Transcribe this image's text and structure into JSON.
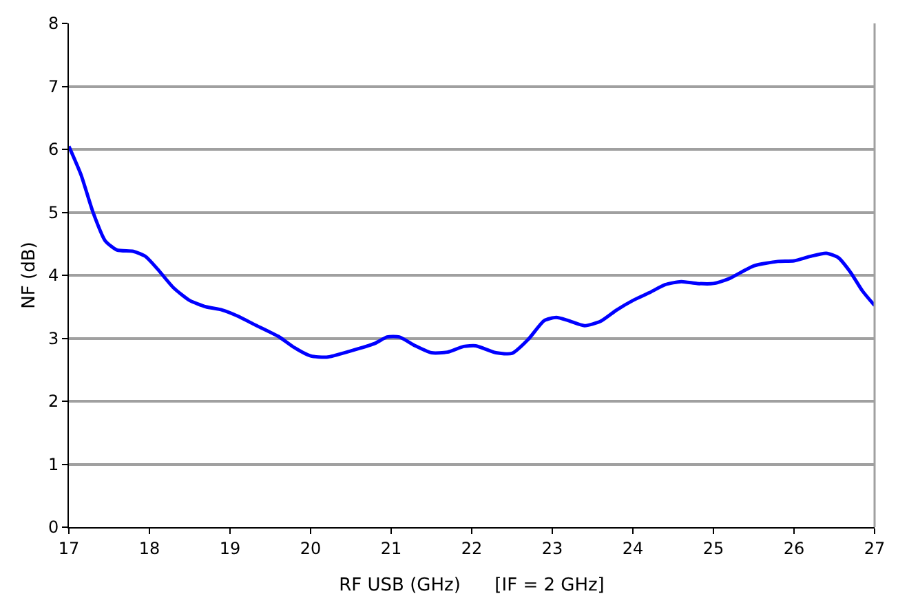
{
  "chart_data": {
    "type": "line",
    "xlabel": "RF USB (GHz)      [IF = 2 GHz]",
    "ylabel": "NF (dB)",
    "xlim": [
      17,
      27
    ],
    "xticks": [
      17,
      18,
      19,
      20,
      21,
      22,
      23,
      24,
      25,
      26,
      27
    ],
    "ylim": [
      0,
      8
    ],
    "yticks": [
      0,
      1,
      2,
      3,
      4,
      5,
      6,
      7,
      8
    ],
    "grid": "y",
    "marker": "none",
    "line_style": "solid",
    "series": [
      {
        "color": "#0000ff",
        "x": [
          17.0,
          17.15,
          17.3,
          17.45,
          17.6,
          17.8,
          17.95,
          18.1,
          18.3,
          18.5,
          18.7,
          18.9,
          19.1,
          19.3,
          19.6,
          19.8,
          20.0,
          20.2,
          20.5,
          20.8,
          20.95,
          21.1,
          21.3,
          21.5,
          21.7,
          21.9,
          22.05,
          22.3,
          22.5,
          22.7,
          22.9,
          23.05,
          23.2,
          23.4,
          23.6,
          23.8,
          24.0,
          24.2,
          24.4,
          24.6,
          24.8,
          25.0,
          25.2,
          25.5,
          25.8,
          26.0,
          26.2,
          26.4,
          26.55,
          26.7,
          26.85,
          27.0
        ],
        "values": [
          6.05,
          5.6,
          5.0,
          4.55,
          4.4,
          4.38,
          4.3,
          4.1,
          3.8,
          3.6,
          3.5,
          3.45,
          3.35,
          3.22,
          3.03,
          2.85,
          2.72,
          2.7,
          2.8,
          2.92,
          3.02,
          3.02,
          2.88,
          2.77,
          2.78,
          2.87,
          2.88,
          2.77,
          2.76,
          2.98,
          3.28,
          3.33,
          3.28,
          3.2,
          3.27,
          3.45,
          3.6,
          3.72,
          3.85,
          3.9,
          3.87,
          3.87,
          3.95,
          4.15,
          4.22,
          4.23,
          4.3,
          4.35,
          4.28,
          4.05,
          3.75,
          3.52
        ]
      }
    ]
  }
}
